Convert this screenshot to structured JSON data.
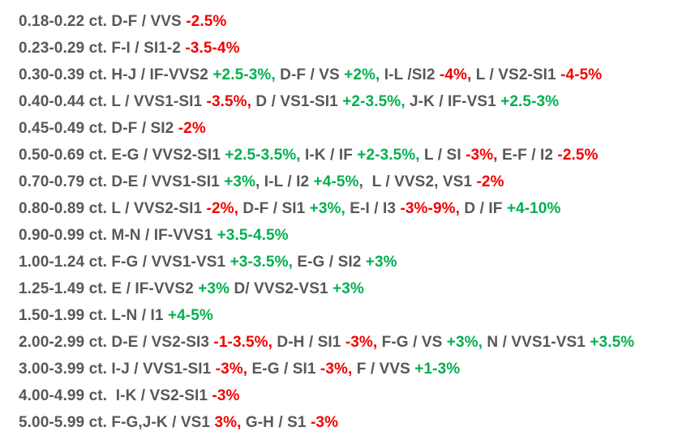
{
  "document": {
    "title": "diamond-price-change-list",
    "background": "#ffffff"
  },
  "colors": {
    "gray": "#58585a",
    "red": "#f40000",
    "green": "#00b04e"
  },
  "lines": [
    {
      "segments": [
        {
          "text": "0.18-0.22 ct. D-F / VVS ",
          "color": "gray"
        },
        {
          "text": "-2.5%",
          "color": "red"
        }
      ]
    },
    {
      "segments": [
        {
          "text": "0.23-0.29 ct. F-I / SI1-2 ",
          "color": "gray"
        },
        {
          "text": "-3.5-4%",
          "color": "red"
        }
      ]
    },
    {
      "segments": [
        {
          "text": "0.30-0.39 ct. H-J / IF-VVS2 ",
          "color": "gray"
        },
        {
          "text": "+2.5-3%,",
          "color": "green"
        },
        {
          "text": " D-F / VS ",
          "color": "gray"
        },
        {
          "text": "+2%,",
          "color": "green"
        },
        {
          "text": " I-L /SI2 ",
          "color": "gray"
        },
        {
          "text": "-4%,",
          "color": "red"
        },
        {
          "text": " L / VS2-SI1 ",
          "color": "gray"
        },
        {
          "text": "-4-5%",
          "color": "red"
        }
      ]
    },
    {
      "segments": [
        {
          "text": "0.40-0.44 ct. L / VVS1-SI1 ",
          "color": "gray"
        },
        {
          "text": "-3.5%,",
          "color": "red"
        },
        {
          "text": " D / VS1-SI1 ",
          "color": "gray"
        },
        {
          "text": "+2-3.5%,",
          "color": "green"
        },
        {
          "text": " J-K / IF-VS1 ",
          "color": "gray"
        },
        {
          "text": "+2.5-3%",
          "color": "green"
        }
      ]
    },
    {
      "segments": [
        {
          "text": "0.45-0.49 ct. D-F / SI2 ",
          "color": "gray"
        },
        {
          "text": "-2%",
          "color": "red"
        }
      ]
    },
    {
      "segments": [
        {
          "text": "0.50-0.69 ct. E-G / VVS2-SI1 ",
          "color": "gray"
        },
        {
          "text": "+2.5-3.5%,",
          "color": "green"
        },
        {
          "text": " I-K / IF ",
          "color": "gray"
        },
        {
          "text": "+2-3.5%,",
          "color": "green"
        },
        {
          "text": " L / SI ",
          "color": "gray"
        },
        {
          "text": "-3%,",
          "color": "red"
        },
        {
          "text": " E-F / I2 ",
          "color": "gray"
        },
        {
          "text": "-2.5%",
          "color": "red"
        }
      ]
    },
    {
      "segments": [
        {
          "text": "0.70-0.79 ct. D-E / VVS1-SI1 ",
          "color": "gray"
        },
        {
          "text": "+3%",
          "color": "green"
        },
        {
          "text": ", I-L / I2 ",
          "color": "gray"
        },
        {
          "text": "+4-5%",
          "color": "green"
        },
        {
          "text": ",  L / VVS2, VS1 ",
          "color": "gray"
        },
        {
          "text": "-2%",
          "color": "red"
        }
      ]
    },
    {
      "segments": [
        {
          "text": "0.80-0.89 ct. L / VVS2-SI1 ",
          "color": "gray"
        },
        {
          "text": "-2%,",
          "color": "red"
        },
        {
          "text": " D-F / SI1 ",
          "color": "gray"
        },
        {
          "text": "+3%,",
          "color": "green"
        },
        {
          "text": " E-I / I3 ",
          "color": "gray"
        },
        {
          "text": "-3%-9%,",
          "color": "red"
        },
        {
          "text": " D / IF ",
          "color": "gray"
        },
        {
          "text": "+4-10%",
          "color": "green"
        }
      ]
    },
    {
      "segments": [
        {
          "text": "0.90-0.99 ct. M-N / IF-VVS1 ",
          "color": "gray"
        },
        {
          "text": "+3.5-4.5%",
          "color": "green"
        }
      ]
    },
    {
      "segments": [
        {
          "text": "1.00-1.24 ct. F-G / VVS1-VS1 ",
          "color": "gray"
        },
        {
          "text": "+3-3.5%,",
          "color": "green"
        },
        {
          "text": " E-G / SI2 ",
          "color": "gray"
        },
        {
          "text": "+3%",
          "color": "green"
        }
      ]
    },
    {
      "segments": [
        {
          "text": "1.25-1.49 ct. E / IF-VVS2 ",
          "color": "gray"
        },
        {
          "text": "+3%",
          "color": "green"
        },
        {
          "text": " D/ VVS2-VS1 ",
          "color": "gray"
        },
        {
          "text": "+3%",
          "color": "green"
        }
      ]
    },
    {
      "segments": [
        {
          "text": "1.50-1.99 ct. L-N / I1 ",
          "color": "gray"
        },
        {
          "text": "+4-5%",
          "color": "green"
        }
      ]
    },
    {
      "segments": [
        {
          "text": "2.00-2.99 ct. D-E / VS2-SI3 ",
          "color": "gray"
        },
        {
          "text": "-1-3.5%,",
          "color": "red"
        },
        {
          "text": " D-H / SI1 ",
          "color": "gray"
        },
        {
          "text": "-3%,",
          "color": "red"
        },
        {
          "text": " F-G / VS ",
          "color": "gray"
        },
        {
          "text": "+3%,",
          "color": "green"
        },
        {
          "text": " N / VVS1-VS1 ",
          "color": "gray"
        },
        {
          "text": "+3.5%",
          "color": "green"
        }
      ]
    },
    {
      "segments": [
        {
          "text": "3.00-3.99 ct. I-J / VVS1-SI1 ",
          "color": "gray"
        },
        {
          "text": "-3%,",
          "color": "red"
        },
        {
          "text": " E-G / SI1 ",
          "color": "gray"
        },
        {
          "text": "-3%,",
          "color": "red"
        },
        {
          "text": " F / VVS ",
          "color": "gray"
        },
        {
          "text": "+1-3%",
          "color": "green"
        }
      ]
    },
    {
      "segments": [
        {
          "text": "4.00-4.99 ct.  I-K / VS2-SI1 ",
          "color": "gray"
        },
        {
          "text": "-3%",
          "color": "red"
        }
      ]
    },
    {
      "segments": [
        {
          "text": "5.00-5.99 ct. F-G,J-K / VS1 ",
          "color": "gray"
        },
        {
          "text": "3%,",
          "color": "red"
        },
        {
          "text": " G-H / S1 ",
          "color": "gray"
        },
        {
          "text": "-3%",
          "color": "red"
        }
      ]
    }
  ]
}
